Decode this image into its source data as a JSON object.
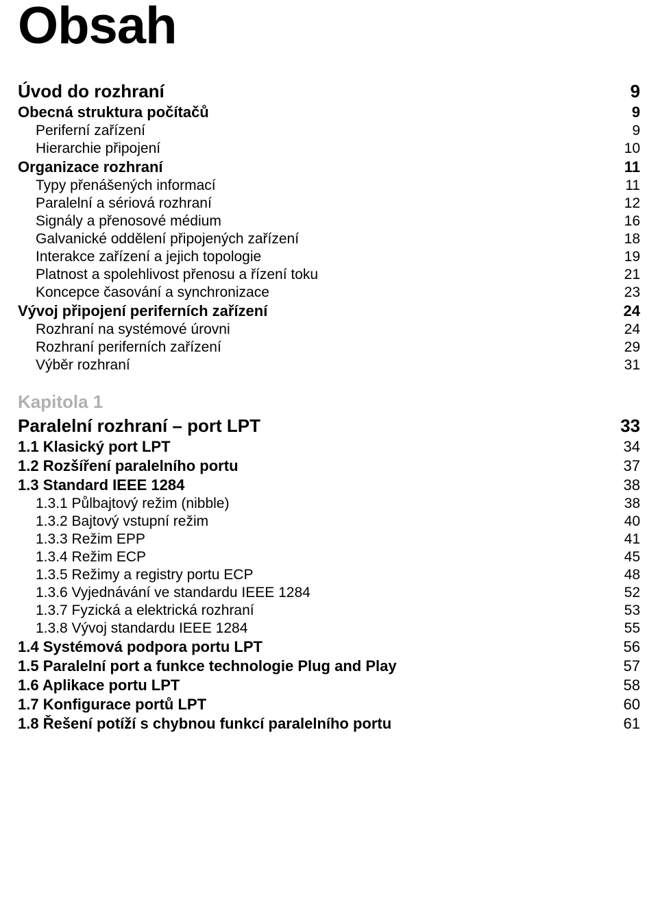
{
  "title": "Obsah",
  "entries": [
    {
      "style": "h-part",
      "label": "Úvod do rozhraní",
      "page": "9"
    },
    {
      "style": "h-sec boldnum",
      "label": "Obecná struktura počítačů",
      "page": "9"
    },
    {
      "style": "h-sub",
      "label": "Periferní zařízení",
      "page": "9"
    },
    {
      "style": "h-sub",
      "label": "Hierarchie připojení",
      "page": "10"
    },
    {
      "style": "h-sec boldnum",
      "label": "Organizace rozhraní",
      "page": "11"
    },
    {
      "style": "h-sub",
      "label": "Typy přenášených informací",
      "page": "11"
    },
    {
      "style": "h-sub",
      "label": "Paralelní a sériová rozhraní",
      "page": "12"
    },
    {
      "style": "h-sub",
      "label": "Signály a přenosové médium",
      "page": "16"
    },
    {
      "style": "h-sub",
      "label": "Galvanické oddělení připojených zařízení",
      "page": "18"
    },
    {
      "style": "h-sub",
      "label": "Interakce zařízení a jejich topologie",
      "page": "19"
    },
    {
      "style": "h-sub",
      "label": "Platnost a spolehlivost přenosu a řízení toku",
      "page": "21"
    },
    {
      "style": "h-sub",
      "label": "Koncepce časování a synchronizace",
      "page": "23"
    },
    {
      "style": "h-sec boldnum",
      "label": "Vývoj připojení periferních zařízení",
      "page": "24"
    },
    {
      "style": "h-sub",
      "label": "Rozhraní na systémové úrovni",
      "page": "24"
    },
    {
      "style": "h-sub",
      "label": "Rozhraní periferních zařízení",
      "page": "29"
    },
    {
      "style": "h-sub",
      "label": "Výběr rozhraní",
      "page": "31"
    },
    {
      "style": "h-chapter",
      "label": "Kapitola 1",
      "page": ""
    },
    {
      "style": "h-part",
      "label": "Paralelní rozhraní – port LPT",
      "page": "33"
    },
    {
      "style": "h-sec",
      "label": "1.1 Klasický port LPT",
      "page": "34"
    },
    {
      "style": "h-sec",
      "label": "1.2 Rozšíření paralelního portu",
      "page": "37"
    },
    {
      "style": "h-sec",
      "label": "1.3 Standard IEEE 1284",
      "page": "38"
    },
    {
      "style": "h-sub",
      "label": "1.3.1 Půlbajtový režim (nibble)",
      "page": "38"
    },
    {
      "style": "h-sub",
      "label": "1.3.2 Bajtový vstupní režim",
      "page": "40"
    },
    {
      "style": "h-sub",
      "label": "1.3.3 Režim EPP",
      "page": "41"
    },
    {
      "style": "h-sub",
      "label": "1.3.4 Režim ECP",
      "page": "45"
    },
    {
      "style": "h-sub",
      "label": "1.3.5 Režimy a registry portu ECP",
      "page": "48"
    },
    {
      "style": "h-sub",
      "label": "1.3.6 Vyjednávání ve standardu IEEE 1284",
      "page": "52"
    },
    {
      "style": "h-sub",
      "label": "1.3.7 Fyzická a elektrická rozhraní",
      "page": "53"
    },
    {
      "style": "h-sub",
      "label": "1.3.8 Vývoj standardu IEEE 1284",
      "page": "55"
    },
    {
      "style": "h-sec",
      "label": "1.4 Systémová podpora portu LPT",
      "page": "56"
    },
    {
      "style": "h-sec",
      "label": "1.5 Paralelní port a funkce technologie Plug and Play",
      "page": "57"
    },
    {
      "style": "h-sec",
      "label": "1.6 Aplikace portu LPT",
      "page": "58"
    },
    {
      "style": "h-sec",
      "label": "1.7 Konfigurace portů LPT",
      "page": "60"
    },
    {
      "style": "h-sec",
      "label": "1.8 Řešení potíží s chybnou funkcí paralelního portu",
      "page": "61"
    }
  ]
}
